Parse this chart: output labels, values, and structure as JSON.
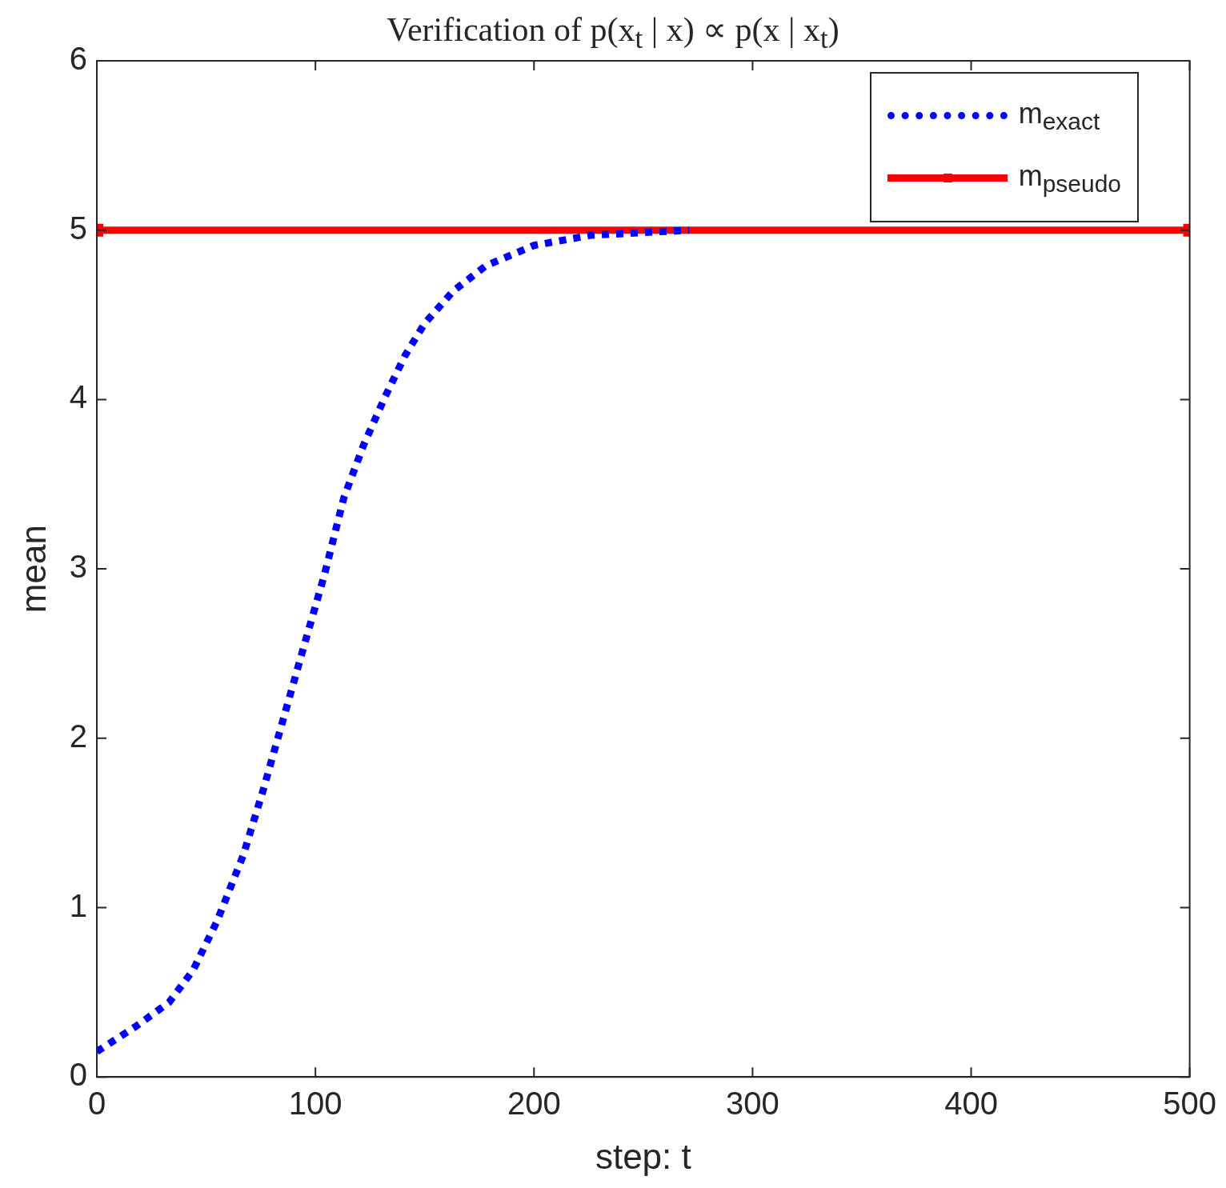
{
  "chart_data": {
    "type": "line",
    "title": "Verification of p(x$_{t}$ | x) ∝ p(x | x$_{t}$)",
    "xlabel": "step: t",
    "ylabel": "mean",
    "xlim": [
      0,
      500
    ],
    "xticks": [
      0,
      100,
      200,
      300,
      400,
      500
    ],
    "ylim": [
      0,
      6
    ],
    "yticks": [
      0,
      1,
      2,
      3,
      4,
      5,
      6
    ],
    "legend": "top right",
    "series": [
      {
        "name": "m$_{exact}$",
        "color": "#0000ff",
        "line_style": "dotted",
        "marker": "none",
        "x": [
          0,
          18,
          33,
          44,
          55,
          67,
          76,
          85,
          94,
          104,
          113,
          122,
          132,
          141,
          150,
          163,
          178,
          200,
          226,
          271
        ],
        "values": [
          0.15,
          0.3,
          0.44,
          0.63,
          0.92,
          1.31,
          1.69,
          2.1,
          2.51,
          2.96,
          3.42,
          3.73,
          4.02,
          4.26,
          4.45,
          4.64,
          4.79,
          4.91,
          4.97,
          5.0
        ]
      },
      {
        "name": "m$_{pseudo}$",
        "color": "#ff0000",
        "line_style": "solid",
        "marker": "square",
        "x": [
          0,
          500
        ],
        "values": [
          5,
          5
        ]
      }
    ]
  }
}
